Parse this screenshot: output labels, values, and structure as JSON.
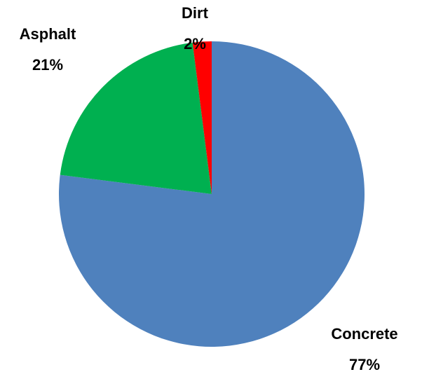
{
  "chart_data": {
    "type": "pie",
    "categories": [
      "Concrete",
      "Asphalt",
      "Dirt"
    ],
    "values": [
      77,
      21,
      2
    ],
    "value_labels": [
      "77%",
      "21%",
      "2%"
    ],
    "colors": [
      "#4f81bd",
      "#00b050",
      "#ff0000"
    ]
  }
}
